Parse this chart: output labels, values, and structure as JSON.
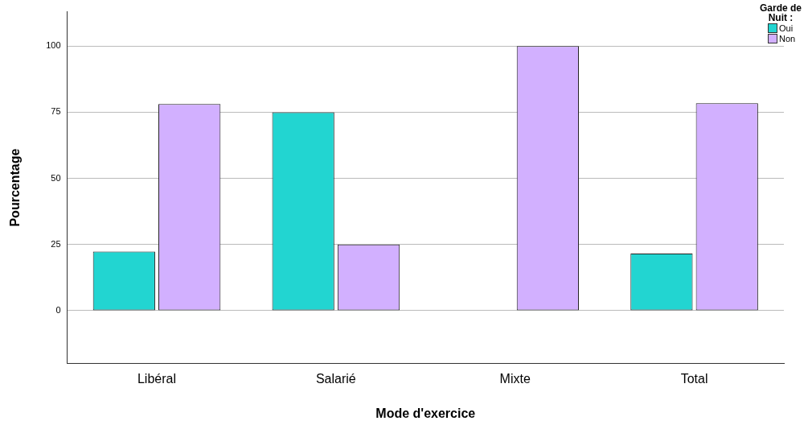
{
  "chart_data": {
    "type": "bar",
    "xlabel": "Mode d'exercice",
    "ylabel": "Pourcentage",
    "legend_title": "Garde de Nuit :",
    "categories": [
      "Libéral",
      "Salarié",
      "Mixte",
      "Total"
    ],
    "series": [
      {
        "name": "Oui",
        "color": "#22d5d1",
        "values": [
          22.3,
          75,
          0,
          21.6
        ]
      },
      {
        "name": "Non",
        "color": "#d2b0ff",
        "values": [
          78.1,
          25,
          100,
          78.4
        ]
      }
    ],
    "ylim": [
      -20,
      113
    ],
    "yticks": [
      0,
      25,
      50,
      75,
      100
    ],
    "grid": "y",
    "legend": "top right"
  }
}
